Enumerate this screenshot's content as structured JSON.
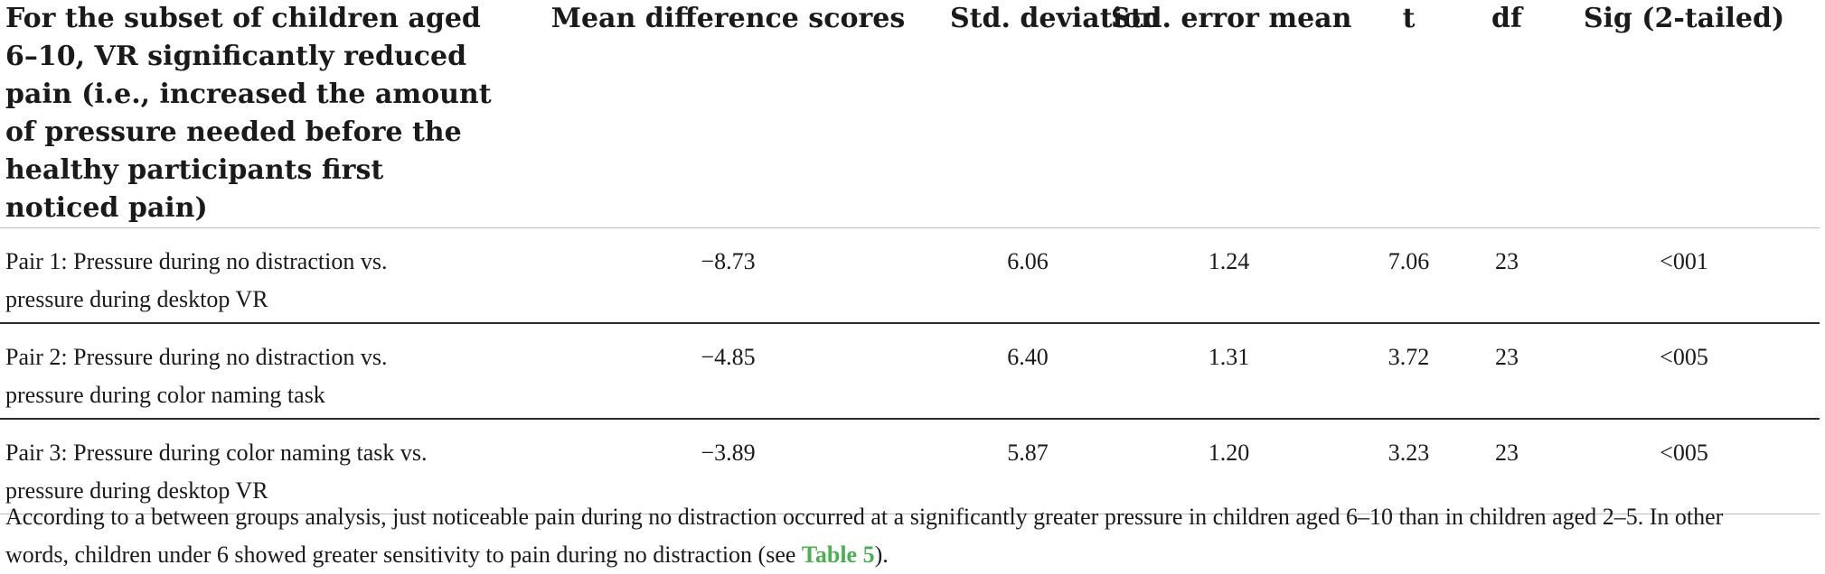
{
  "table": {
    "headers": [
      "For the subset of children aged 6–10, VR significantly reduced pain (i.e., increased the amount of pressure needed before the healthy participants first noticed pain)",
      "Mean difference scores",
      "Std. deviation",
      "Std. error mean",
      "t",
      "df",
      "Sig (2-tailed)"
    ],
    "rows": [
      {
        "label_line1": "Pair 1: Pressure during no distraction vs.",
        "label_line2": "pressure during desktop VR",
        "mean_diff": "−8.73",
        "std_dev": "6.06",
        "std_err": "1.24",
        "t": "7.06",
        "df": "23",
        "sig": "<001"
      },
      {
        "label_line1": "Pair 2: Pressure during no distraction vs.",
        "label_line2": "pressure during color naming task",
        "mean_diff": "−4.85",
        "std_dev": "6.40",
        "std_err": "1.31",
        "t": "3.72",
        "df": "23",
        "sig": "<005"
      },
      {
        "label_line1": "Pair 3: Pressure during color naming task vs.",
        "label_line2": "pressure during desktop VR",
        "mean_diff": "−3.89",
        "std_dev": "5.87",
        "std_err": "1.20",
        "t": "3.23",
        "df": "23",
        "sig": "<005"
      }
    ]
  },
  "footnote": {
    "line1": "According to a between groups analysis, just noticeable pain during no distraction occurred at a significantly greater pressure in children aged 6–10 than in children aged 2–5. In other",
    "line2_before": "words, children under 6 showed greater sensitivity to pain during no distraction (see ",
    "link_text": "Table 5",
    "line2_after": ").",
    "link_color": "#4caf50"
  }
}
